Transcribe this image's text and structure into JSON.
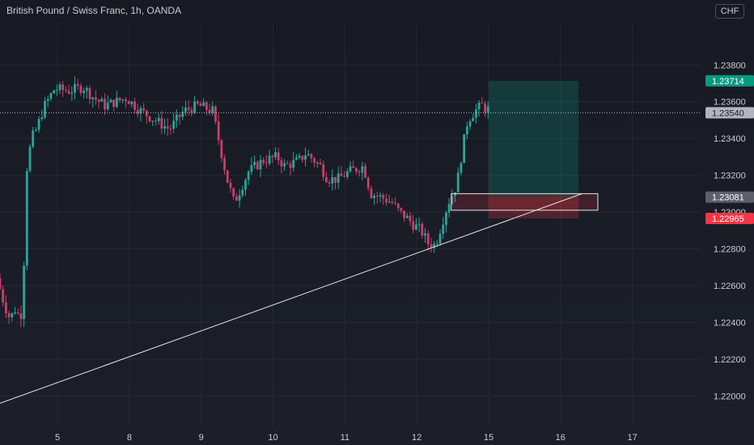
{
  "header": {
    "symbol_title": "British Pound / Swiss Franc, 1h, OANDA",
    "currency": "CHF"
  },
  "colors": {
    "background": "#1a1c25",
    "bull": "#26a69a",
    "bear": "#cc3d6c",
    "text": "#c9ccd6",
    "grid": "#252833",
    "stop": "#f23645",
    "target": "#089981",
    "current": "#b2b5be"
  },
  "chart_data": {
    "type": "candlestick",
    "x_tick_labels": [
      "5",
      "8",
      "9",
      "10",
      "11",
      "12",
      "15",
      "16",
      "17"
    ],
    "x_ticks_day": [
      1,
      2,
      3,
      4,
      5,
      6,
      7,
      8,
      9
    ],
    "x_range_day": [
      0.2,
      9.95
    ],
    "y_tick_values": [
      1.238,
      1.236,
      1.234,
      1.232,
      1.23,
      1.228,
      1.226,
      1.224,
      1.222,
      1.22
    ],
    "y_tick_labels": [
      "1.23800",
      "1.23600",
      "1.23400",
      "1.23200",
      "1.23000",
      "1.22800",
      "1.22600",
      "1.22400",
      "1.22200",
      "1.22000"
    ],
    "y_range": [
      1.2183,
      1.2403
    ],
    "price_path": [
      [
        0.2,
        1.2264
      ],
      [
        0.3,
        1.225
      ],
      [
        0.38,
        1.2242
      ],
      [
        0.45,
        1.2247
      ],
      [
        0.5,
        1.2244
      ],
      [
        0.56,
        1.2245
      ],
      [
        0.6,
        1.232
      ],
      [
        0.68,
        1.234
      ],
      [
        0.75,
        1.2345
      ],
      [
        0.85,
        1.2357
      ],
      [
        1.0,
        1.2367
      ],
      [
        1.2,
        1.2366
      ],
      [
        1.4,
        1.2368
      ],
      [
        1.55,
        1.2362
      ],
      [
        1.7,
        1.2358
      ],
      [
        1.85,
        1.236
      ],
      [
        2.0,
        1.2362
      ],
      [
        2.2,
        1.2355
      ],
      [
        2.4,
        1.235
      ],
      [
        2.6,
        1.2345
      ],
      [
        2.8,
        1.2355
      ],
      [
        3.0,
        1.2358
      ],
      [
        3.2,
        1.2355
      ],
      [
        3.4,
        1.2318
      ],
      [
        3.5,
        1.2305
      ],
      [
        3.7,
        1.2322
      ],
      [
        3.9,
        1.2328
      ],
      [
        4.1,
        1.233
      ],
      [
        4.2,
        1.2325
      ],
      [
        4.4,
        1.2328
      ],
      [
        4.5,
        1.2332
      ],
      [
        4.7,
        1.2325
      ],
      [
        4.8,
        1.2318
      ],
      [
        4.95,
        1.2318
      ],
      [
        5.1,
        1.2322
      ],
      [
        5.3,
        1.2325
      ],
      [
        5.4,
        1.231
      ],
      [
        5.55,
        1.2308
      ],
      [
        5.7,
        1.2305
      ],
      [
        5.8,
        1.23
      ],
      [
        5.9,
        1.2297
      ],
      [
        6.0,
        1.2293
      ],
      [
        6.1,
        1.229
      ],
      [
        6.2,
        1.2283
      ],
      [
        6.3,
        1.2282
      ],
      [
        6.4,
        1.2295
      ],
      [
        6.48,
        1.2305
      ],
      [
        6.6,
        1.2315
      ],
      [
        6.68,
        1.2335
      ],
      [
        6.75,
        1.235
      ],
      [
        6.85,
        1.2355
      ],
      [
        6.95,
        1.2358
      ],
      [
        7.0,
        1.2356
      ]
    ],
    "trendline": {
      "start": [
        0.2,
        1.2196
      ],
      "end": [
        8.3,
        1.231
      ]
    },
    "current_price": 1.2354,
    "position": {
      "entry": 1.23081,
      "stop": 1.22965,
      "target": 1.23714,
      "x_start_day": 7.0,
      "x_end_day": 8.25
    },
    "zone_box": {
      "top": 1.231,
      "bottom": 1.2301,
      "x_start_day": 6.48,
      "x_end_day": 8.52
    },
    "price_labels": {
      "target": "1.23714",
      "current": "1.23540",
      "entry": "1.23081",
      "stop": "1.22965"
    }
  }
}
